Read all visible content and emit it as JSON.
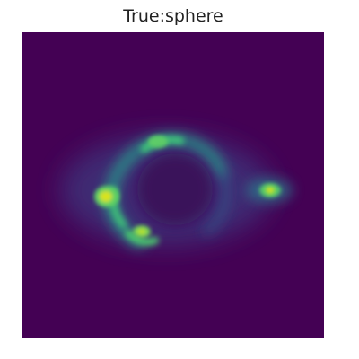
{
  "title": "True:sphere",
  "colormap": {
    "background": "#440154",
    "mid": "#2a9d8f",
    "bright": "#3fd17a",
    "peak": "#fde725"
  }
}
